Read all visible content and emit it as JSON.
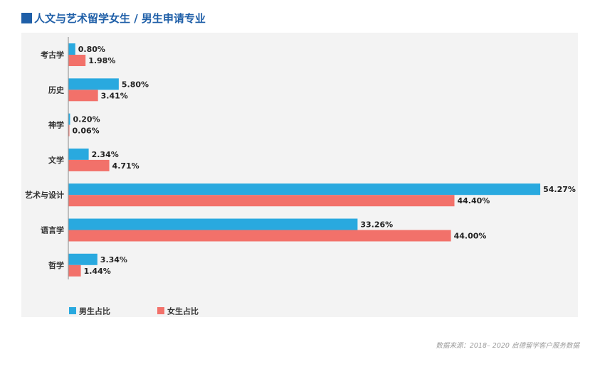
{
  "title": "人文与艺术留学女生 / 男生申请专业",
  "source": "数据来源：2018– 2020 启德留学客户服务数据",
  "colors": {
    "male": "#29a9df",
    "female": "#f2716a",
    "title": "#1f5fa8"
  },
  "chart_data": {
    "type": "bar",
    "orientation": "horizontal",
    "categories": [
      "考古学",
      "历史",
      "神学",
      "文学",
      "艺术与设计",
      "语言学",
      "哲学"
    ],
    "series": [
      {
        "name": "男生占比",
        "values": [
          0.8,
          5.8,
          0.2,
          2.34,
          54.27,
          33.26,
          3.34
        ],
        "labels": [
          "0.80%",
          "5.80%",
          "0.20%",
          "2.34%",
          "54.27%",
          "33.26%",
          "3.34%"
        ]
      },
      {
        "name": "女生占比",
        "values": [
          1.98,
          3.41,
          0.06,
          4.71,
          44.4,
          44.0,
          1.44
        ],
        "labels": [
          "1.98%",
          "3.41%",
          "0.06%",
          "4.71%",
          "44.40%",
          "44.00%",
          "1.44%"
        ]
      }
    ],
    "xlim": [
      0,
      55
    ],
    "unit": "%",
    "legend_position": "bottom-left",
    "grid": false
  }
}
